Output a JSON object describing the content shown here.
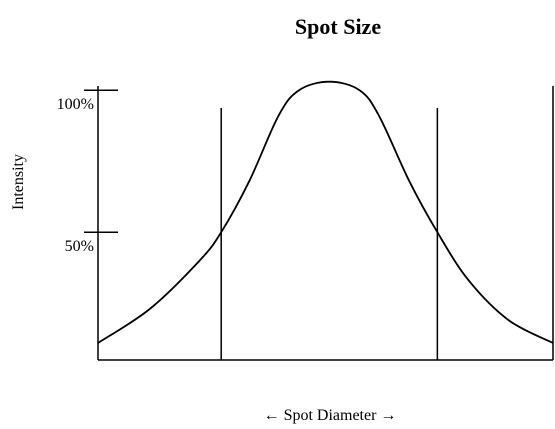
{
  "chart_data": {
    "type": "line",
    "title": "Spot Size",
    "y_label": "Intensity",
    "x_label": "← Spot Diameter →",
    "x": [
      -2.14,
      -1.66,
      -1.2,
      -1,
      -0.74,
      -0.47,
      -0.28,
      0,
      0.28,
      0.46,
      0.74,
      1,
      1.29,
      1.66,
      2.07
    ],
    "series": [
      {
        "color": "#000000",
        "values": [
          11,
          23,
          40,
          50,
          68,
          91,
          100,
          103,
          100,
          91,
          68,
          50,
          33,
          19,
          11
        ]
      }
    ],
    "markers": [
      -1,
      1
    ],
    "xlim": [
      -2.14,
      2.07
    ],
    "ylim": [
      5,
      105
    ],
    "yticks": [
      {
        "value": 100,
        "label": "100%"
      },
      {
        "value": 50,
        "label": "50%"
      }
    ]
  }
}
